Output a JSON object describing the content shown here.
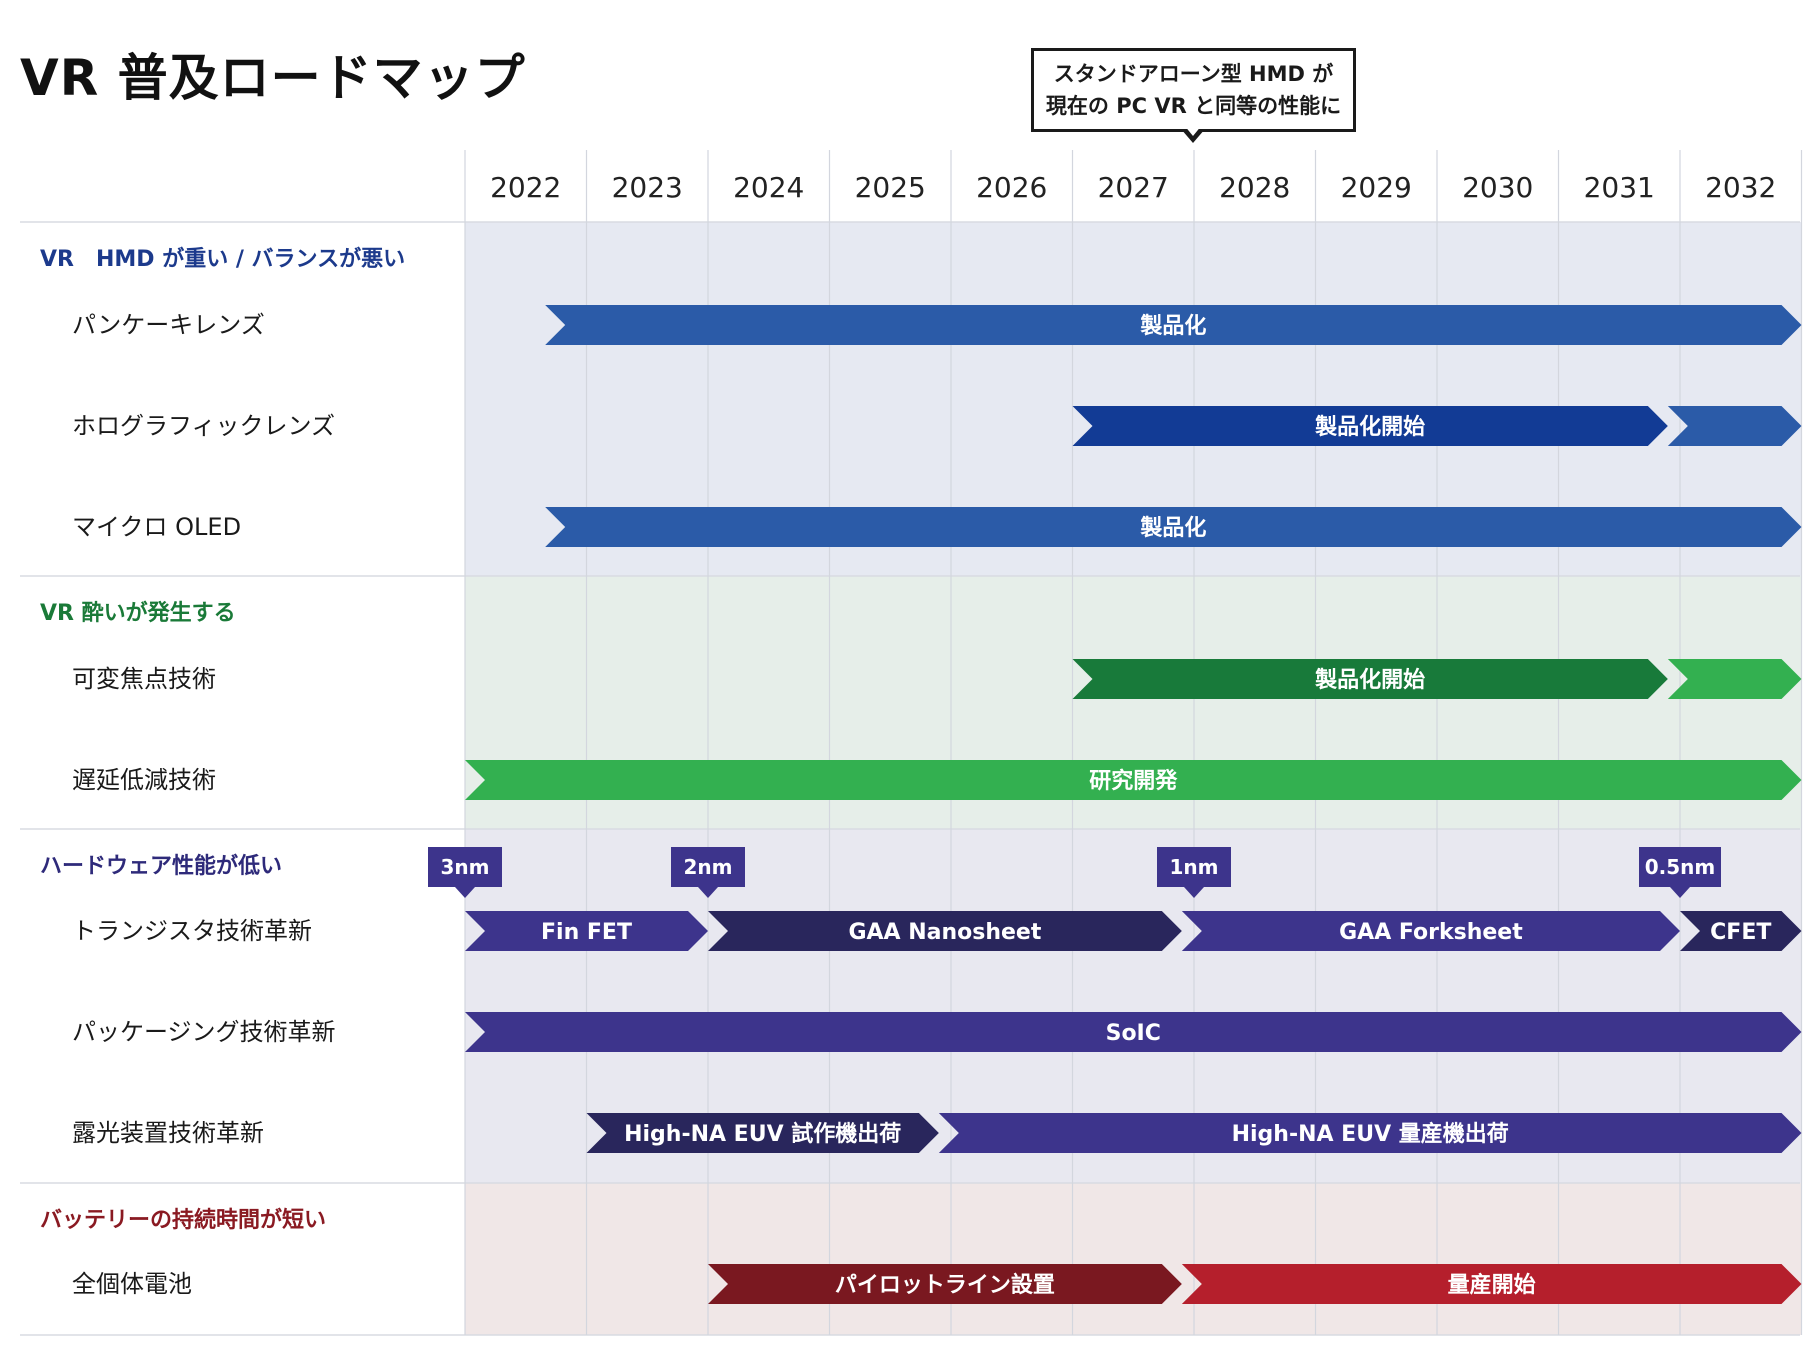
{
  "title": "VR 普及ロードマップ",
  "callout": {
    "line1": "スタンドアローン型 HMD が",
    "line2": "現在の PC VR と同等の性能に",
    "year": 2027.5
  },
  "chart_data": {
    "type": "gantt",
    "years": [
      "2022",
      "2023",
      "2024",
      "2025",
      "2026",
      "2027",
      "2028",
      "2029",
      "2030",
      "2031",
      "2032"
    ],
    "groups": [
      {
        "label": "VR　HMD が重い / バランスが悪い",
        "color": "#1c3a8c",
        "background": "#e6e9f2",
        "rows": [
          {
            "label": "パンケーキレンズ",
            "bars": [
              {
                "start": 2022.66,
                "end": 2033.0,
                "label": "製品化",
                "color": "#2b5ba8"
              }
            ]
          },
          {
            "label": "ホログラフィックレンズ",
            "bars": [
              {
                "start": 2027.0,
                "end": 2031.9,
                "label": "製品化開始",
                "color": "#123b95"
              },
              {
                "start": 2031.9,
                "end": 2033.0,
                "label": "",
                "color": "#2b5ba8"
              }
            ]
          },
          {
            "label": "マイクロ OLED",
            "bars": [
              {
                "start": 2022.66,
                "end": 2033.0,
                "label": "製品化",
                "color": "#2b5ba8"
              }
            ]
          }
        ]
      },
      {
        "label": "VR 酔いが発生する",
        "color": "#1a7a38",
        "background": "#e6eee9",
        "rows": [
          {
            "label": "可変焦点技術",
            "bars": [
              {
                "start": 2027.0,
                "end": 2031.9,
                "label": "製品化開始",
                "color": "#187a3a"
              },
              {
                "start": 2031.9,
                "end": 2033.0,
                "label": "",
                "color": "#33b050"
              }
            ]
          },
          {
            "label": "遅延低減技術",
            "bars": [
              {
                "start": 2022.0,
                "end": 2033.0,
                "label": "研究開発",
                "color": "#33b050"
              }
            ]
          }
        ]
      },
      {
        "label": "ハードウェア性能が低い",
        "color": "#2e2a7a",
        "background": "#e8e8f0",
        "markers": [
          {
            "year": 2022.0,
            "label": "3nm"
          },
          {
            "year": 2024.0,
            "label": "2nm"
          },
          {
            "year": 2028.0,
            "label": "1nm"
          },
          {
            "year": 2032.0,
            "label": "0.5nm"
          }
        ],
        "rows": [
          {
            "label": "トランジスタ技術革新",
            "bars": [
              {
                "start": 2022.0,
                "end": 2024.0,
                "label": "Fin FET",
                "color": "#3d348c"
              },
              {
                "start": 2024.0,
                "end": 2027.9,
                "label": "GAA Nanosheet",
                "color": "#29265c"
              },
              {
                "start": 2027.9,
                "end": 2032.0,
                "label": "GAA Forksheet",
                "color": "#3d348c"
              },
              {
                "start": 2032.0,
                "end": 2033.0,
                "label": "CFET",
                "color": "#29265c"
              }
            ]
          },
          {
            "label": "パッケージング技術革新",
            "bars": [
              {
                "start": 2022.0,
                "end": 2033.0,
                "label": "SoIC",
                "color": "#3d348c"
              }
            ]
          },
          {
            "label": "露光装置技術革新",
            "bars": [
              {
                "start": 2023.0,
                "end": 2025.9,
                "label": "High-NA EUV 試作機出荷",
                "color": "#29265c"
              },
              {
                "start": 2025.9,
                "end": 2033.0,
                "label": "High-NA EUV 量産機出荷",
                "color": "#3d348c"
              }
            ]
          }
        ]
      },
      {
        "label": "バッテリーの持続時間が短い",
        "color": "#8a1a22",
        "background": "#f0e7e7",
        "rows": [
          {
            "label": "全個体電池",
            "bars": [
              {
                "start": 2024.0,
                "end": 2027.9,
                "label": "パイロットライン設置",
                "color": "#7a1820"
              },
              {
                "start": 2027.9,
                "end": 2033.0,
                "label": "量産開始",
                "color": "#b51f2c"
              }
            ]
          }
        ]
      }
    ]
  }
}
